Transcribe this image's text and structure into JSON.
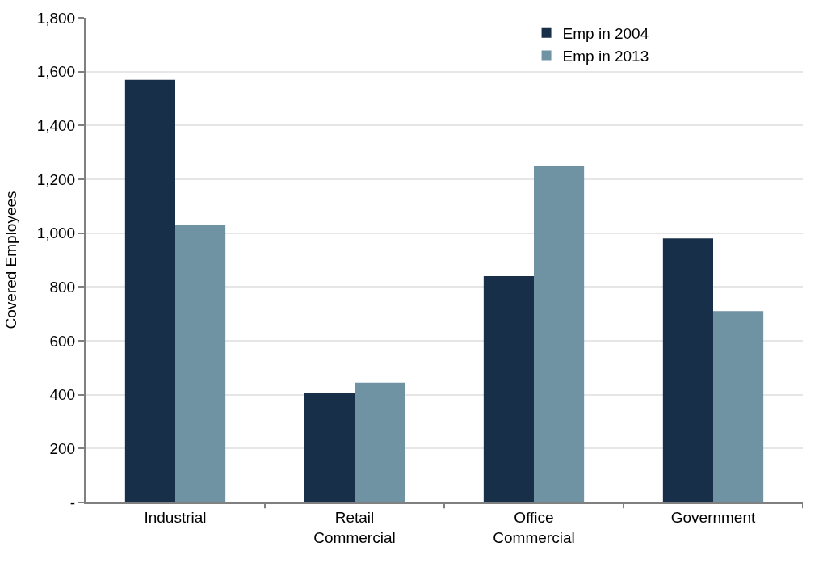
{
  "chart_data": {
    "type": "bar",
    "ylabel": "Covered Employees",
    "categories": [
      "Industrial",
      "Retail Commercial",
      "Office Commercial",
      "Government"
    ],
    "series": [
      {
        "name": "Emp in 2004",
        "color": "#182f4a",
        "values": [
          1570,
          405,
          840,
          980
        ]
      },
      {
        "name": "Emp in 2013",
        "color": "#6f93a3",
        "values": [
          1030,
          445,
          1250,
          710
        ]
      }
    ],
    "ylim": [
      0,
      1800
    ],
    "yticks": [
      {
        "value": 0,
        "label": "-"
      },
      {
        "value": 200,
        "label": "200"
      },
      {
        "value": 400,
        "label": "400"
      },
      {
        "value": 600,
        "label": "600"
      },
      {
        "value": 800,
        "label": "800"
      },
      {
        "value": 1000,
        "label": "1,000"
      },
      {
        "value": 1200,
        "label": "1,200"
      },
      {
        "value": 1400,
        "label": "1,400"
      },
      {
        "value": 1600,
        "label": "1,600"
      },
      {
        "value": 1800,
        "label": "1,800"
      }
    ],
    "grid": "y",
    "legend": "top right"
  }
}
